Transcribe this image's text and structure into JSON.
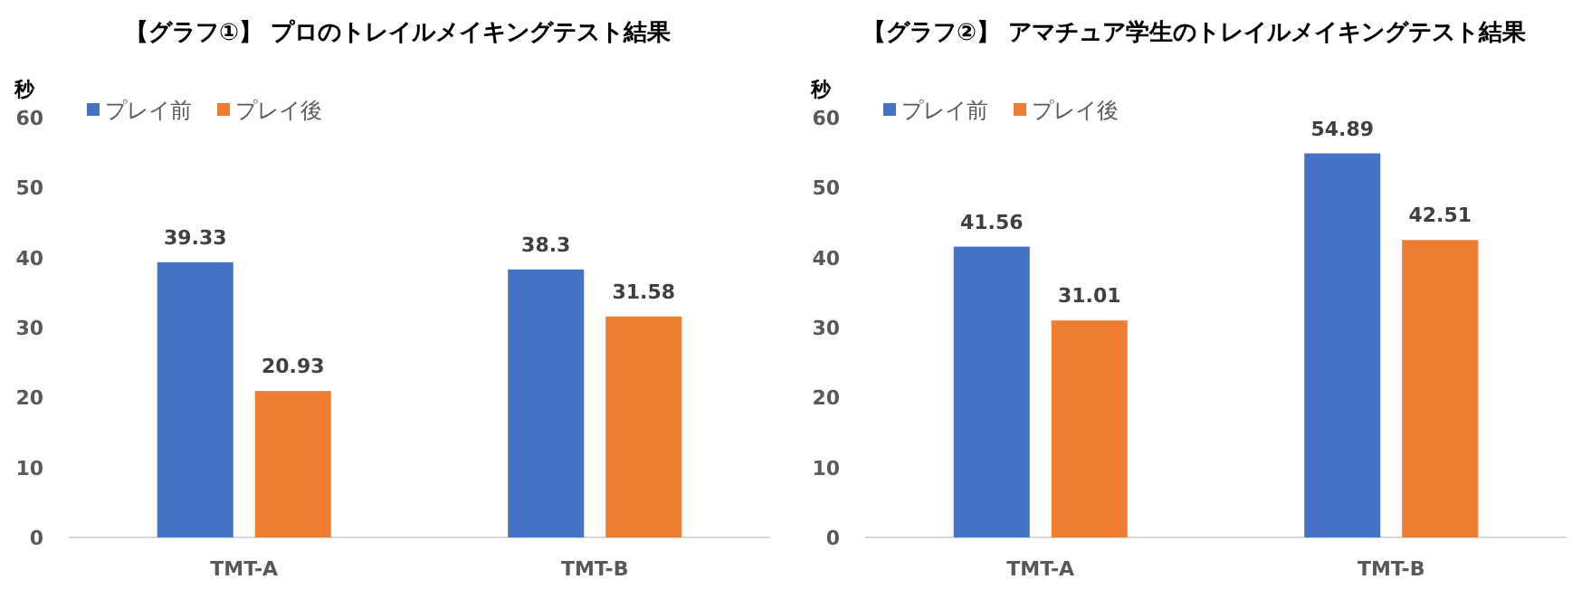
{
  "chart_data": [
    {
      "type": "bar",
      "title": "【グラフ①】 プロのトレイルメイキングテスト結果",
      "ylabel": "秒",
      "categories": [
        "TMT-A",
        "TMT-B"
      ],
      "series": [
        {
          "name": "プレイ前",
          "color": "#4472c4",
          "values": [
            39.33,
            38.3
          ]
        },
        {
          "name": "プレイ後",
          "color": "#ed7d31",
          "values": [
            20.93,
            31.58
          ]
        }
      ],
      "ylim": [
        0,
        60
      ],
      "yticks": [
        0,
        10,
        20,
        30,
        40,
        50,
        60
      ],
      "grid": false,
      "legend": "top left",
      "data_labels": true
    },
    {
      "type": "bar",
      "title": "【グラフ②】 アマチュア学生のトレイルメイキングテスト結果",
      "ylabel": "秒",
      "categories": [
        "TMT-A",
        "TMT-B"
      ],
      "series": [
        {
          "name": "プレイ前",
          "color": "#4472c4",
          "values": [
            41.56,
            54.89
          ]
        },
        {
          "name": "プレイ後",
          "color": "#ed7d31",
          "values": [
            31.01,
            42.51
          ]
        }
      ],
      "ylim": [
        0,
        60
      ],
      "yticks": [
        0,
        10,
        20,
        30,
        40,
        50,
        60
      ],
      "grid": false,
      "legend": "top left",
      "data_labels": true
    }
  ]
}
